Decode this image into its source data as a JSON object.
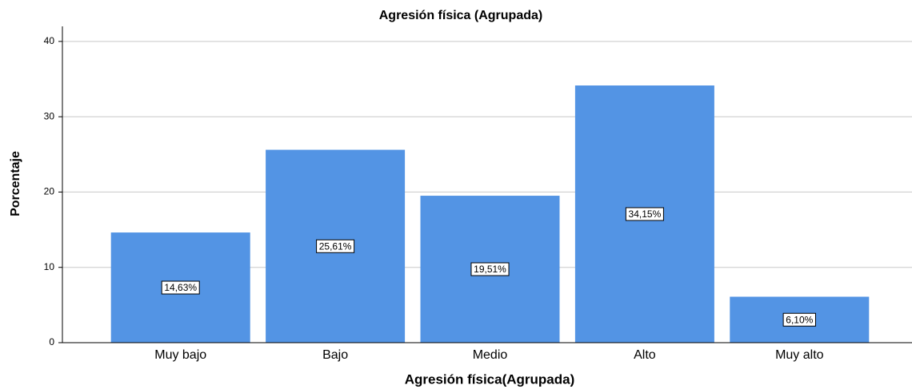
{
  "chart_data": {
    "type": "bar",
    "title": "Agresión física (Agrupada)",
    "x_label": "Agresión física(Agrupada)",
    "y_label": "Porcentaje",
    "categories": [
      "Muy bajo",
      "Bajo",
      "Medio",
      "Alto",
      "Muy alto"
    ],
    "values": [
      14.63,
      25.61,
      19.51,
      34.15,
      6.1
    ],
    "value_labels": [
      "14,63%",
      "25,61%",
      "19,51%",
      "34,15%",
      "6,10%"
    ],
    "color": "#5394e4",
    "ylim": [
      0,
      42
    ],
    "yticks": [
      0,
      10,
      20,
      30,
      40
    ],
    "grid": true
  }
}
